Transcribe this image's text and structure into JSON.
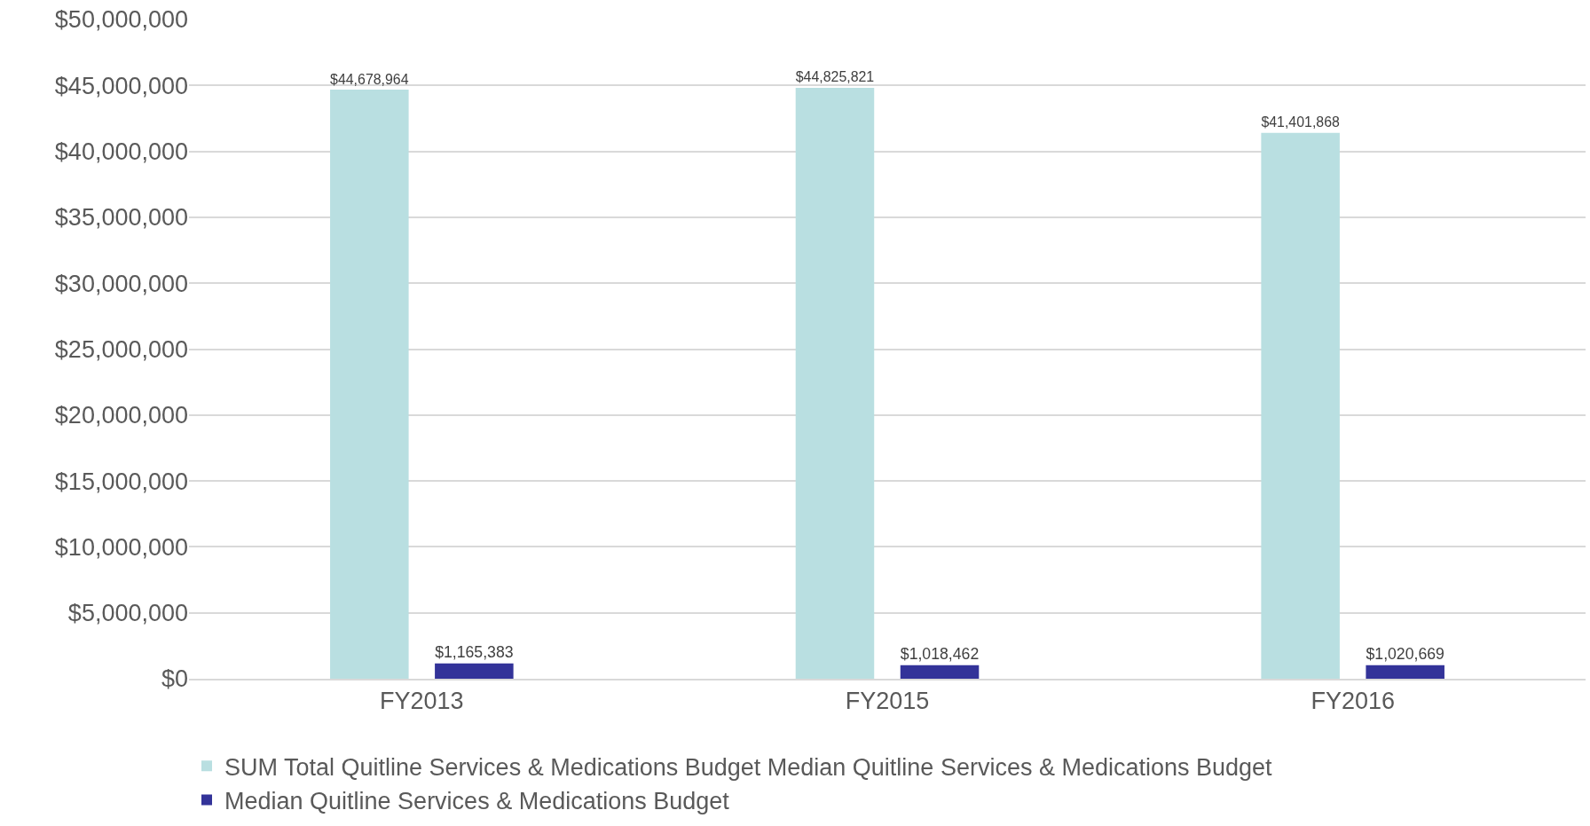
{
  "chart_data": {
    "type": "bar",
    "categories": [
      "FY2013",
      "FY2015",
      "FY2016"
    ],
    "series": [
      {
        "name": "SUM Total Quitline Services & Medications Budget Median Quitline Services & Medications Budget",
        "color": "#b9dfe1",
        "values": [
          44678964,
          44825821,
          41401868
        ],
        "value_labels": [
          "$44,678,964",
          "$44,825,821",
          "$41,401,868"
        ]
      },
      {
        "name": "Median Quitline Services & Medications Budget",
        "color": "#333399",
        "values": [
          1165383,
          1018462,
          1020669
        ],
        "value_labels": [
          "$1,165,383",
          "$1,018,462",
          "$1,020,669"
        ]
      }
    ],
    "ylim": [
      0,
      50000000
    ],
    "yticks": [
      {
        "value": 0,
        "label": "$0"
      },
      {
        "value": 5000000,
        "label": "$5,000,000"
      },
      {
        "value": 10000000,
        "label": "$10,000,000"
      },
      {
        "value": 15000000,
        "label": "$15,000,000"
      },
      {
        "value": 20000000,
        "label": "$20,000,000"
      },
      {
        "value": 25000000,
        "label": "$25,000,000"
      },
      {
        "value": 30000000,
        "label": "$30,000,000"
      },
      {
        "value": 35000000,
        "label": "$35,000,000"
      },
      {
        "value": 40000000,
        "label": "$40,000,000"
      },
      {
        "value": 45000000,
        "label": "$45,000,000"
      },
      {
        "value": 50000000,
        "label": "$50,000,000"
      }
    ],
    "grid": "y",
    "legend": "bottom left"
  }
}
